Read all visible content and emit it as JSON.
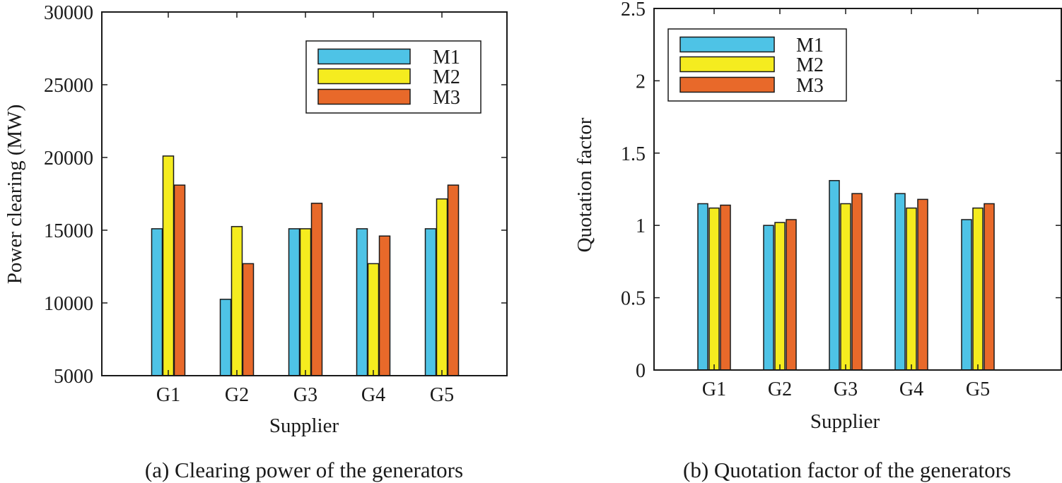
{
  "colors": {
    "M1": "#4ec3e6",
    "M2": "#f5ec1f",
    "M3": "#e8692a",
    "stroke": "#1a1a1a"
  },
  "chart_data": [
    {
      "type": "bar",
      "caption": "(a) Clearing power of the generators",
      "xlabel": "Supplier",
      "ylabel": "Power clearing (MW)",
      "categories": [
        "G1",
        "G2",
        "G3",
        "G4",
        "G5"
      ],
      "ylim": [
        5000,
        30000
      ],
      "yticks": [
        5000,
        10000,
        15000,
        20000,
        25000,
        30000
      ],
      "ytick_labels": [
        "5000",
        "10000",
        "15000",
        "20000",
        "25000",
        "30000"
      ],
      "legend_position": "top-right",
      "series": [
        {
          "name": "M1",
          "values": [
            15100,
            10250,
            15100,
            15100,
            15100
          ]
        },
        {
          "name": "M2",
          "values": [
            20100,
            15250,
            15100,
            12700,
            17150
          ]
        },
        {
          "name": "M3",
          "values": [
            18100,
            12700,
            16850,
            14600,
            18100
          ]
        }
      ]
    },
    {
      "type": "bar",
      "caption": "(b) Quotation factor of the generators",
      "xlabel": "Supplier",
      "ylabel": "Quotation factor",
      "categories": [
        "G1",
        "G2",
        "G3",
        "G4",
        "G5"
      ],
      "ylim": [
        0,
        2.5
      ],
      "yticks": [
        0,
        0.5,
        1,
        1.5,
        2,
        2.5
      ],
      "ytick_labels": [
        "0",
        "0.5",
        "1",
        "1.5",
        "2",
        "2.5"
      ],
      "legend_position": "top-left",
      "series": [
        {
          "name": "M1",
          "values": [
            1.15,
            1.0,
            1.31,
            1.22,
            1.04
          ]
        },
        {
          "name": "M2",
          "values": [
            1.12,
            1.02,
            1.15,
            1.12,
            1.12
          ]
        },
        {
          "name": "M3",
          "values": [
            1.14,
            1.04,
            1.22,
            1.18,
            1.15
          ]
        }
      ]
    }
  ]
}
